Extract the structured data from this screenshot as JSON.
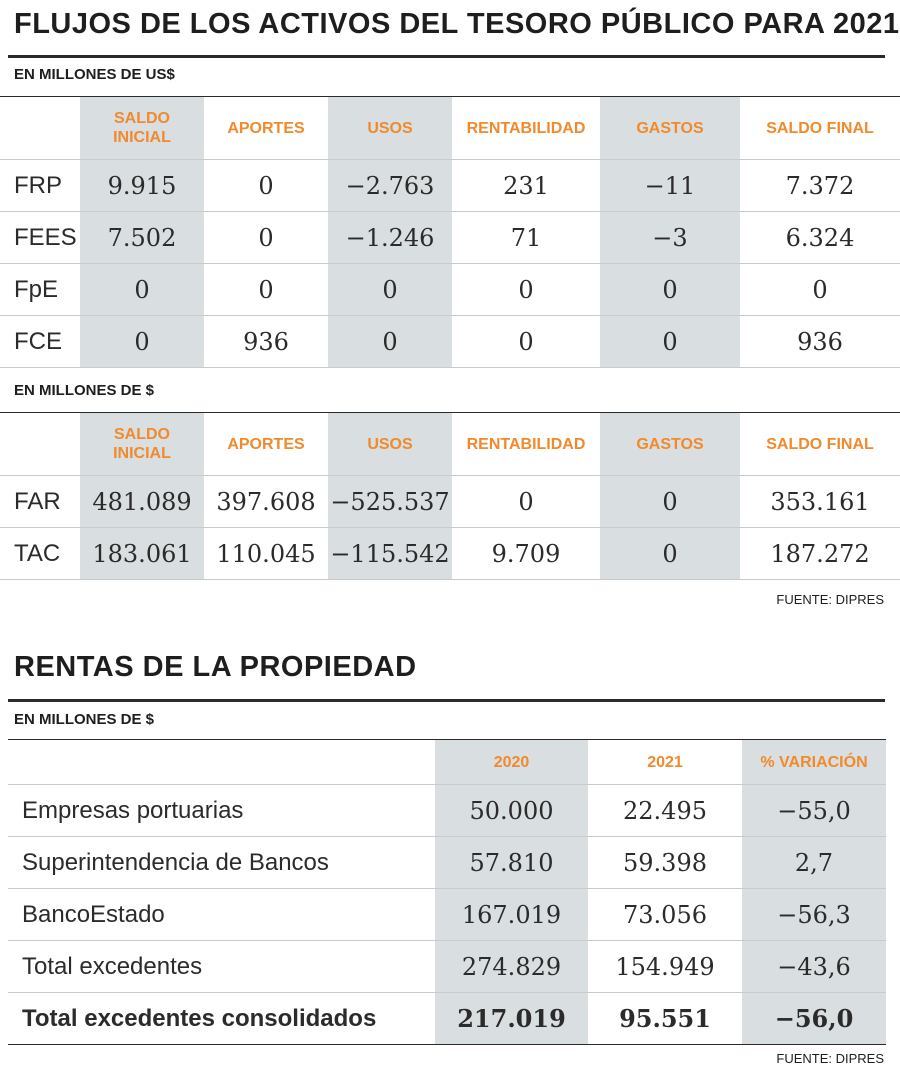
{
  "flujos": {
    "title": "FLUJOS DE LOS ACTIVOS DEL TESORO PÚBLICO PARA 2021",
    "usd": {
      "units": "EN MILLONES DE US$",
      "headers": [
        "SALDO INICIAL",
        "APORTES",
        "USOS",
        "RENTABILIDAD",
        "GASTOS",
        "SALDO FINAL"
      ],
      "rows": [
        {
          "label": "FRP",
          "values": [
            "9.915",
            "0",
            "−2.763",
            "231",
            "−11",
            "7.372"
          ]
        },
        {
          "label": "FEES",
          "values": [
            "7.502",
            "0",
            "−1.246",
            "71",
            "−3",
            "6.324"
          ]
        },
        {
          "label": "FpE",
          "values": [
            "0",
            "0",
            "0",
            "0",
            "0",
            "0"
          ]
        },
        {
          "label": "FCE",
          "values": [
            "0",
            "936",
            "0",
            "0",
            "0",
            "936"
          ]
        }
      ]
    },
    "clp": {
      "units": "EN MILLONES DE $",
      "headers": [
        "SALDO INICIAL",
        "APORTES",
        "USOS",
        "RENTABILIDAD",
        "GASTOS",
        "SALDO FINAL"
      ],
      "rows": [
        {
          "label": "FAR",
          "values": [
            "481.089",
            "397.608",
            "−525.537",
            "0",
            "0",
            "353.161"
          ]
        },
        {
          "label": "TAC",
          "values": [
            "183.061",
            "110.045",
            "−115.542",
            "9.709",
            "0",
            "187.272"
          ]
        }
      ]
    },
    "source": "FUENTE: DIPRES"
  },
  "rentas": {
    "title": "RENTAS DE LA PROPIEDAD",
    "units": "EN MILLONES DE $",
    "headers": [
      "2020",
      "2021",
      "% VARIACIÓN"
    ],
    "rows": [
      {
        "label": "Empresas portuarias",
        "values": [
          "50.000",
          "22.495",
          "−55,0"
        ]
      },
      {
        "label": "Superintendencia de Bancos",
        "values": [
          "57.810",
          "59.398",
          "2,7"
        ]
      },
      {
        "label": "BancoEstado",
        "values": [
          "167.019",
          "73.056",
          "−56,3"
        ]
      },
      {
        "label": "Total excedentes",
        "values": [
          "274.829",
          "154.949",
          "−43,6"
        ]
      }
    ],
    "total": {
      "label": "Total excedentes consolidados",
      "values": [
        "217.019",
        "95.551",
        "−56,0"
      ]
    },
    "source": "FUENTE: DIPRES"
  },
  "colors": {
    "accent": "#f08a2c",
    "shade": "#d9dee0",
    "text": "#2b2b2b"
  }
}
